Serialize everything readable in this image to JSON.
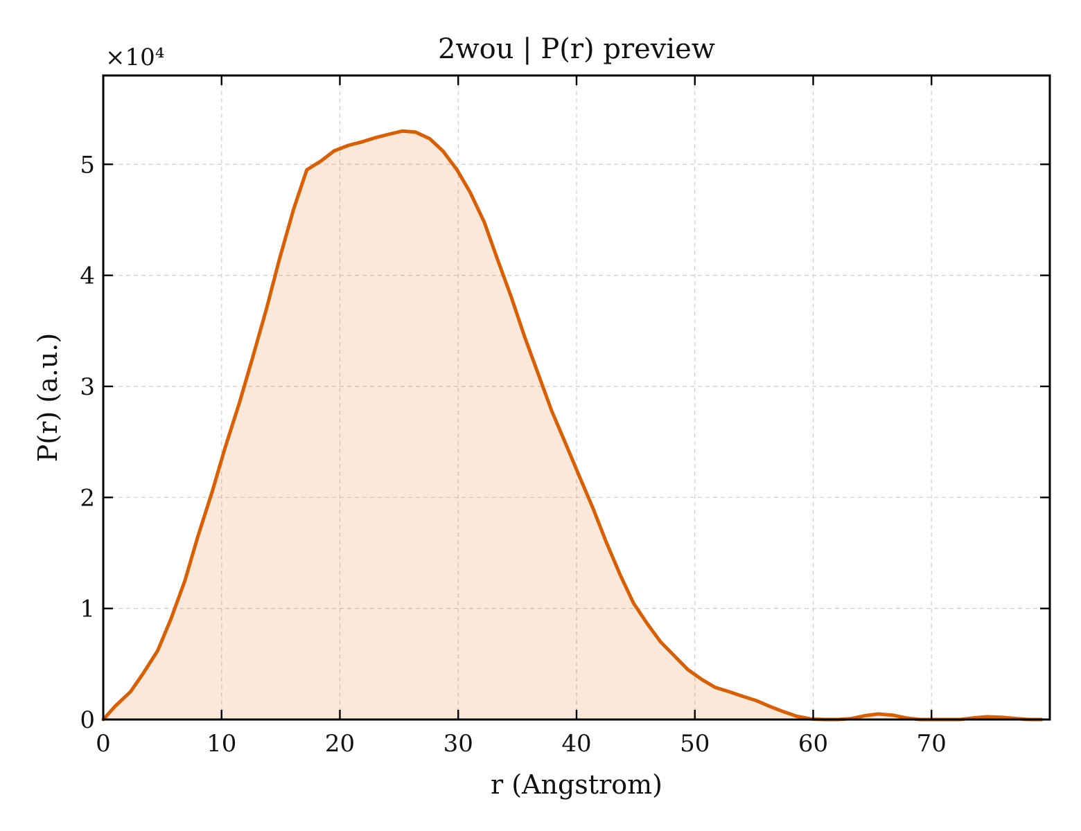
{
  "chart_data": {
    "type": "area",
    "title": "2wou | P(r) preview",
    "xlabel": "r (Angstrom)",
    "ylabel": "P(r) (a.u.)",
    "y_multiplier_label": "×10⁴",
    "y_scale": 10000,
    "xlim": [
      0,
      80
    ],
    "ylim": [
      0,
      58000
    ],
    "xticks": [
      0,
      10,
      20,
      30,
      40,
      50,
      60,
      70
    ],
    "yticks": [
      0,
      10000,
      20000,
      30000,
      40000,
      50000
    ],
    "ytick_labels": [
      "0",
      "1",
      "2",
      "3",
      "4",
      "5"
    ],
    "grid": true,
    "legend": "none",
    "line_color": "#d95f02",
    "fill_color": "#d95f02",
    "fill_opacity": 0.14,
    "series": [
      {
        "x": [
          0,
          1,
          2.3,
          3.4,
          4.6,
          5.7,
          6.9,
          8.0,
          9.2,
          10.3,
          11.5,
          12.6,
          13.8,
          14.9,
          16.1,
          17.2,
          18.4,
          19.5,
          20.7,
          21.8,
          23.0,
          24.1,
          25.3,
          26.4,
          27.6,
          28.7,
          29.9,
          31.0,
          32.2,
          33.3,
          34.5,
          35.6,
          36.8,
          37.9,
          39.1,
          40.2,
          41.4,
          42.5,
          43.7,
          44.8,
          46.0,
          47.1,
          48.3,
          49.4,
          50.6,
          51.7,
          52.9,
          54.0,
          55.2,
          56.3,
          57.5,
          58.6,
          59.8,
          60.9,
          62.1,
          63.2,
          64.4,
          65.5,
          66.7,
          67.8,
          69.0,
          70.1,
          71.3,
          72.4,
          73.6,
          74.7,
          75.9,
          77.0,
          78.2,
          79.3
        ],
        "y": [
          0,
          1200,
          2500,
          4200,
          6200,
          9000,
          12500,
          16500,
          20500,
          24500,
          28500,
          32500,
          37000,
          41500,
          46000,
          49500,
          50300,
          51200,
          51700,
          52000,
          52400,
          52700,
          53000,
          52900,
          52300,
          51200,
          49500,
          47500,
          44800,
          41500,
          38000,
          34500,
          31000,
          27800,
          24800,
          22000,
          19000,
          16000,
          13000,
          10500,
          8600,
          7000,
          5700,
          4500,
          3600,
          2900,
          2500,
          2100,
          1700,
          1200,
          700,
          300,
          50,
          0,
          0,
          80,
          350,
          500,
          400,
          150,
          0,
          0,
          0,
          0,
          150,
          250,
          200,
          100,
          0,
          0
        ]
      }
    ]
  }
}
